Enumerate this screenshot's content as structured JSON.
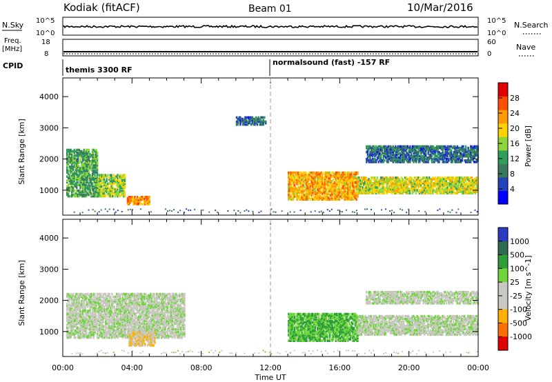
{
  "header": {
    "radar": "Kodiak (fitACF)",
    "beam": "Beam 01",
    "date": "10/Mar/2016"
  },
  "top_panels": {
    "nsky_label": "N.Sky",
    "nsearch_label": "N.Search",
    "nsky_ticks": [
      "10^5",
      "10^0"
    ],
    "nsearch_ticks": [
      "10^5",
      "10^0"
    ],
    "freq_label": "Freq.",
    "freq_unit": "[MHz]",
    "freq_ticks": [
      "18",
      "8"
    ],
    "nave_label": "Nave",
    "nave_ticks": [
      "60",
      "0"
    ],
    "cpid_label": "CPID",
    "cpid_segments": [
      {
        "text": "themis 3300 RF",
        "start_h": 0
      },
      {
        "text": "normalsound (fast) -157 RF",
        "start_h": 12
      }
    ]
  },
  "chart_data": [
    {
      "type": "heatmap",
      "title": "",
      "xlabel": "Time UT",
      "ylabel": "Slant Range [km]",
      "xlim": [
        0,
        24
      ],
      "ylim": [
        200,
        4600
      ],
      "x_ticks": [
        "00:00",
        "04:00",
        "08:00",
        "12:00",
        "16:00",
        "20:00",
        "00:00"
      ],
      "y_ticks": [
        1000,
        2000,
        3000,
        4000
      ],
      "colorbar": {
        "label": "Power [dB]",
        "range": [
          0,
          32
        ],
        "ticks": [
          4,
          8,
          12,
          16,
          20,
          24,
          28
        ],
        "colors": [
          "#0000ff",
          "#2244bb",
          "#3a7a5a",
          "#2e9e5a",
          "#8cd63a",
          "#ffd200",
          "#ff9a00",
          "#ff5000",
          "#e00000"
        ]
      },
      "echo_regions": [
        {
          "t": [
            0.2,
            2.0
          ],
          "range": [
            800,
            2300
          ],
          "power": 12
        },
        {
          "t": [
            2.0,
            3.6
          ],
          "range": [
            800,
            1500
          ],
          "power": 16
        },
        {
          "t": [
            3.7,
            5.0
          ],
          "range": [
            550,
            800
          ],
          "power": 24
        },
        {
          "t": [
            13.0,
            17.0
          ],
          "range": [
            700,
            1600
          ],
          "power": 22
        },
        {
          "t": [
            17.0,
            24.0
          ],
          "range": [
            900,
            1400
          ],
          "power": 18
        },
        {
          "t": [
            17.5,
            24.0
          ],
          "range": [
            1900,
            2400
          ],
          "power": 8
        },
        {
          "t": [
            10.0,
            11.7
          ],
          "range": [
            3100,
            3350
          ],
          "power": 8
        }
      ]
    },
    {
      "type": "heatmap",
      "title": "",
      "xlabel": "Time UT",
      "ylabel": "Slant Range [km]",
      "xlim": [
        0,
        24
      ],
      "ylim": [
        200,
        4600
      ],
      "x_ticks": [
        "00:00",
        "04:00",
        "08:00",
        "12:00",
        "16:00",
        "20:00",
        "00:00"
      ],
      "y_ticks": [
        1000,
        2000,
        3000,
        4000
      ],
      "colorbar": {
        "label": "Velocity [m s^-1]",
        "ticks": [
          "1000",
          "500",
          "100",
          "25",
          "-25",
          "-100",
          "-500",
          "-1000"
        ],
        "colors": [
          "#2a3cbf",
          "#2d6a52",
          "#2e9e3a",
          "#6ed63a",
          "#c8c8c0",
          "#c8c8c0",
          "#ffb000",
          "#ff7000",
          "#e00000"
        ]
      },
      "echo_regions": [
        {
          "t": [
            0.2,
            7.0
          ],
          "range": [
            800,
            2200
          ],
          "velocity": 0
        },
        {
          "t": [
            3.8,
            5.3
          ],
          "range": [
            550,
            1000
          ],
          "velocity": -100
        },
        {
          "t": [
            13.0,
            17.0
          ],
          "range": [
            700,
            1600
          ],
          "velocity": 100
        },
        {
          "t": [
            17.0,
            24.0
          ],
          "range": [
            900,
            1500
          ],
          "velocity": 0
        },
        {
          "t": [
            17.5,
            24.0
          ],
          "range": [
            1900,
            2300
          ],
          "velocity": 0
        }
      ]
    }
  ]
}
